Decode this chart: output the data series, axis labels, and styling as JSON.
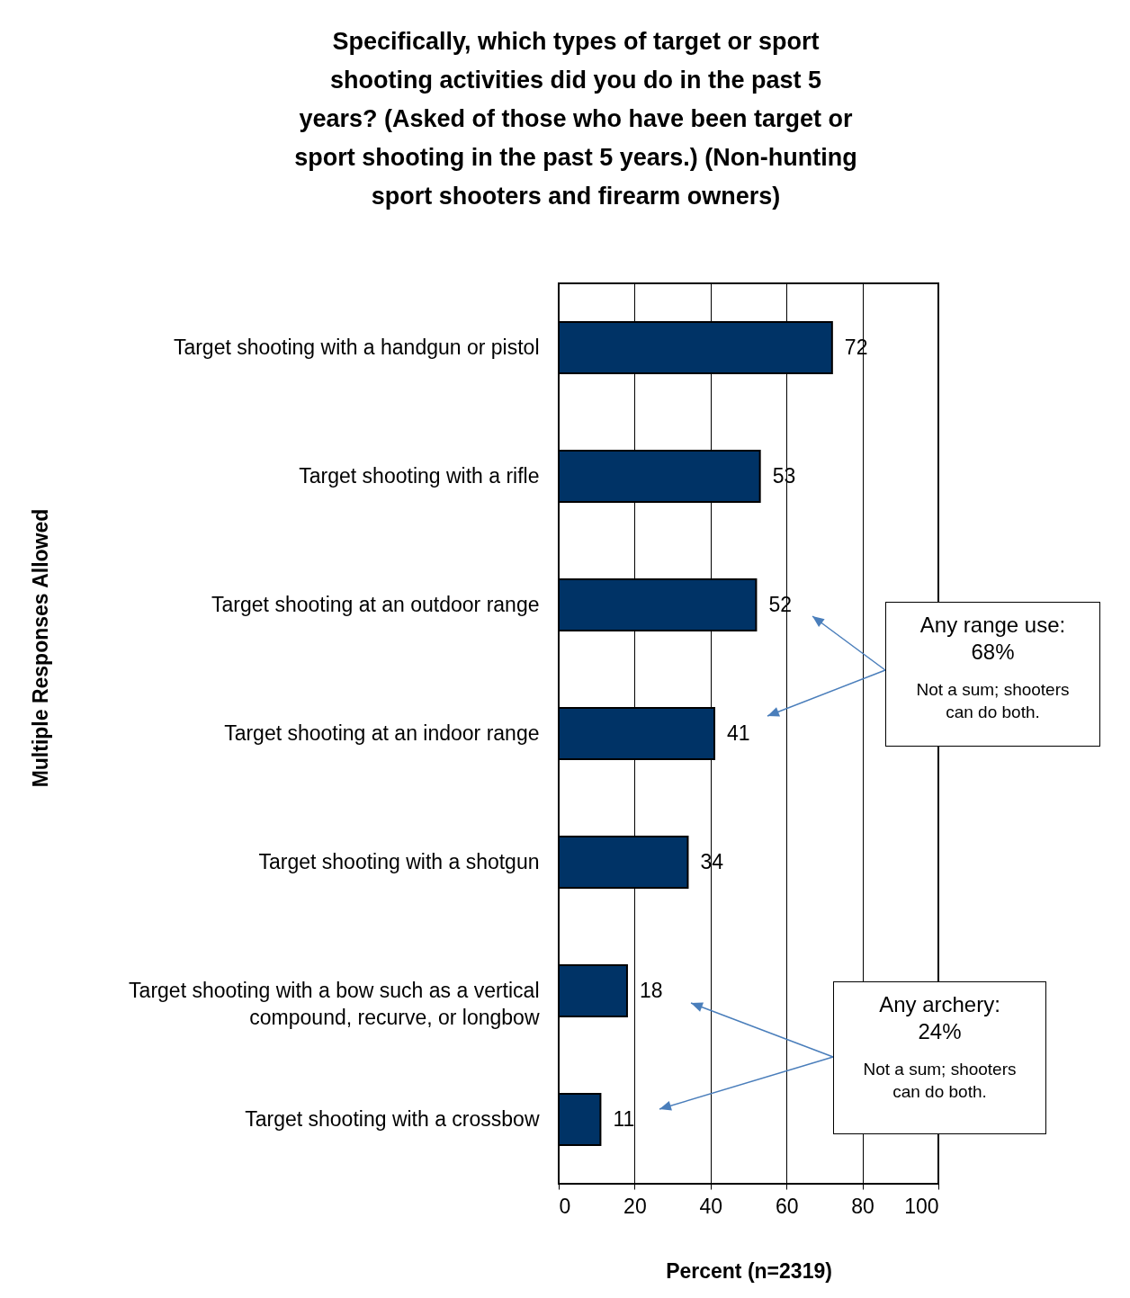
{
  "chart_data": {
    "type": "bar",
    "orientation": "horizontal",
    "title": "Specifically, which types of target or sport shooting activities did you do in the past 5 years? (Asked of those who have been target or sport shooting in the past 5 years.) (Non-hunting sport shooters and firearm owners)",
    "xlabel": "Percent (n=2319)",
    "ylabel": "Multiple Responses Allowed",
    "categories": [
      "Target shooting with a handgun or pistol",
      "Target shooting with a rifle",
      "Target shooting at an outdoor range",
      "Target shooting at an indoor range",
      "Target shooting with a shotgun",
      "Target shooting with a bow such as a vertical compound, recurve, or longbow",
      "Target shooting with a crossbow"
    ],
    "values": [
      72,
      53,
      52,
      41,
      34,
      18,
      11
    ],
    "color": "#003366",
    "xlim": [
      0,
      100
    ],
    "xticks": [
      0,
      20,
      40,
      60,
      80,
      100
    ],
    "grid": "x",
    "data_labels": true,
    "annotations": [
      "Any range use: 68%",
      "Not a sum; shooters can do both.",
      "Any archery: 24%",
      "Not a sum; shooters can do both."
    ]
  }
}
